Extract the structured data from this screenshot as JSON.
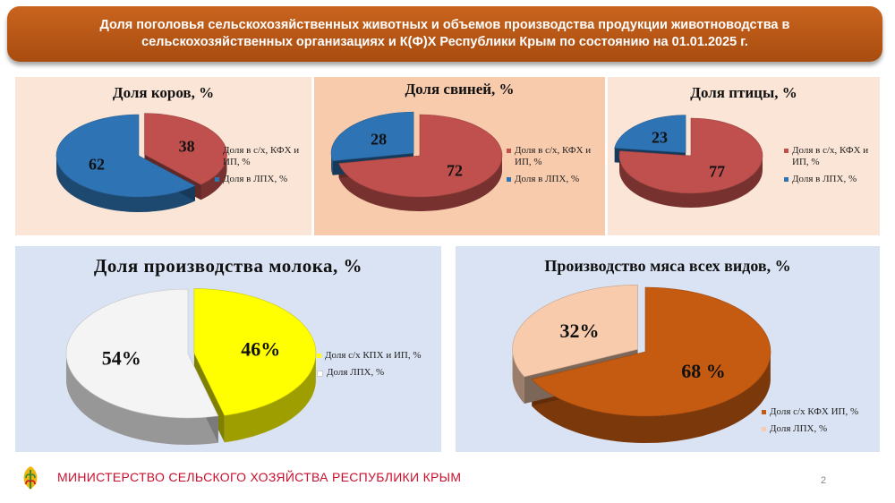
{
  "header": {
    "title": "Доля поголовья сельскохозяйственных животных и объемов производства продукции животноводства в сельскохозяйственных организациях и К(Ф)Х Республики Крым по состоянию на 01.01.2025 г."
  },
  "colors": {
    "header": "#b8561a",
    "footer_text": "#c8102e"
  },
  "chart_data": [
    {
      "type": "pie",
      "title": "Доля коров, %",
      "categories": [
        "Доля в с/х, КФХ и ИП, %",
        "Доля в ЛПХ, %"
      ],
      "values": [
        38,
        62
      ],
      "labels": [
        "38",
        "62"
      ],
      "colors": [
        "#c0504d",
        "#2e74b5"
      ],
      "legend": "right"
    },
    {
      "type": "pie",
      "title": "Доля свиней, %",
      "categories": [
        "Доля в с/х, КФХ и ИП, %",
        "Доля в ЛПХ, %"
      ],
      "values": [
        72,
        28
      ],
      "labels": [
        "72",
        "28"
      ],
      "colors": [
        "#c0504d",
        "#2e74b5"
      ],
      "legend": "right"
    },
    {
      "type": "pie",
      "title": "Доля птицы, %",
      "categories": [
        "Доля в с/х, КФХ и ИП, %",
        "Доля в ЛПХ, %"
      ],
      "values": [
        77,
        23
      ],
      "labels": [
        "77",
        "23"
      ],
      "colors": [
        "#c0504d",
        "#2e74b5"
      ],
      "legend": "right"
    },
    {
      "type": "pie",
      "title": "Доля производства молока, %",
      "categories": [
        "Доля с/х КПХ и ИП, %",
        "Доля ЛПХ, %"
      ],
      "values": [
        46,
        54
      ],
      "labels": [
        "46%",
        "54%"
      ],
      "colors": [
        "#ffff00",
        "#f4f4f4"
      ],
      "legend": "right"
    },
    {
      "type": "pie",
      "title": "Производство мяса всех видов, %",
      "categories": [
        "Доля с/х КФХ ИП, %",
        "Доля ЛПХ, %"
      ],
      "values": [
        68,
        32
      ],
      "labels": [
        "68 %",
        "32%"
      ],
      "colors": [
        "#c55a11",
        "#f8cbad"
      ],
      "legend": "bottom-right"
    }
  ],
  "footer": {
    "ministry": "МИНИСТЕРСТВО СЕЛЬСКОГО ХОЗЯЙСТВА РЕСПУБЛИКИ КРЫМ",
    "page": "2"
  }
}
